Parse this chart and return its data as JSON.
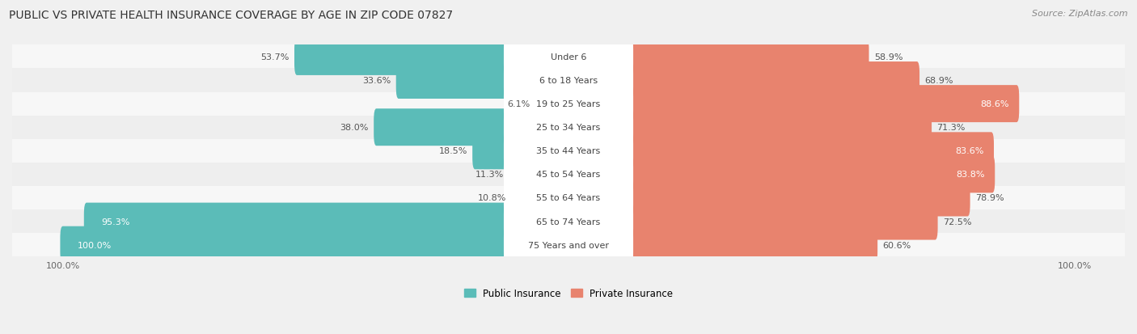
{
  "title": "PUBLIC VS PRIVATE HEALTH INSURANCE COVERAGE BY AGE IN ZIP CODE 07827",
  "source": "Source: ZipAtlas.com",
  "categories": [
    "Under 6",
    "6 to 18 Years",
    "19 to 25 Years",
    "25 to 34 Years",
    "35 to 44 Years",
    "45 to 54 Years",
    "55 to 64 Years",
    "65 to 74 Years",
    "75 Years and over"
  ],
  "public_values": [
    53.7,
    33.6,
    6.1,
    38.0,
    18.5,
    11.3,
    10.8,
    95.3,
    100.0
  ],
  "private_values": [
    58.9,
    68.9,
    88.6,
    71.3,
    83.6,
    83.8,
    78.9,
    72.5,
    60.6
  ],
  "public_color": "#5bbcb8",
  "private_color": "#e8836e",
  "row_bg_light": "#f7f7f7",
  "row_bg_dark": "#eeeeee",
  "title_fontsize": 10,
  "source_fontsize": 8,
  "label_fontsize": 8,
  "value_fontsize": 8,
  "legend_fontsize": 8.5,
  "figsize": [
    14.06,
    4.14
  ],
  "dpi": 100,
  "max_value": 100.0,
  "bar_height": 0.58,
  "background_color": "#f0f0f0",
  "white_label_threshold_public": 80,
  "white_label_threshold_private": 80
}
